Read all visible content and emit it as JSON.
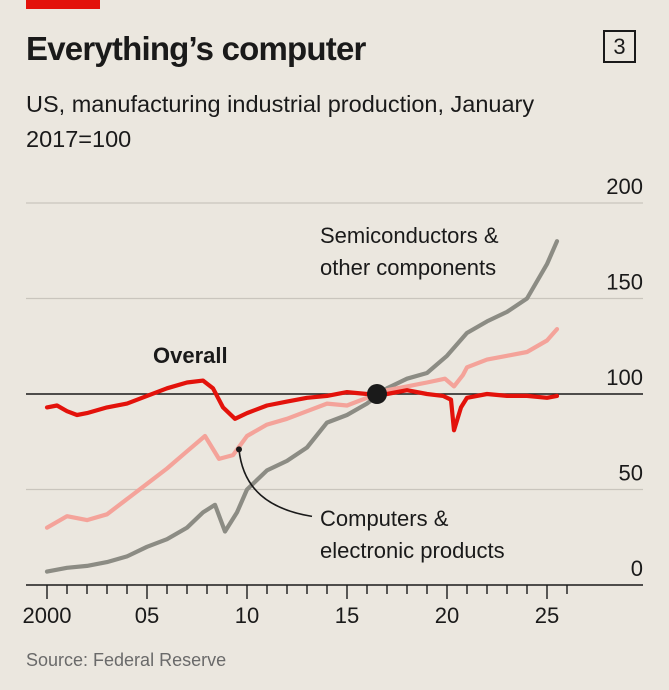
{
  "header": {
    "title": "Everything’s computer",
    "chart_number": "3",
    "subtitle": "US, manufacturing industrial production, January 2017=100",
    "accent_color": "#e3120b"
  },
  "footer": {
    "source": "Source: Federal Reserve"
  },
  "chart_data": {
    "type": "line",
    "title": "Everything’s computer",
    "subtitle": "US, manufacturing industrial production, January 2017=100",
    "xlabel": "",
    "ylabel": "",
    "xlim": [
      1999.5,
      2029
    ],
    "ylim": [
      0,
      200
    ],
    "x_ticks": [
      2000,
      2005,
      2010,
      2015,
      2020,
      2025
    ],
    "x_tick_labels": [
      "2000",
      "05",
      "10",
      "15",
      "20",
      "25"
    ],
    "y_ticks": [
      0,
      50,
      100,
      150,
      200
    ],
    "y_tick_labels": [
      "0",
      "50",
      "100",
      "150",
      "200"
    ],
    "grid": true,
    "reference_point": {
      "x": 2016.5,
      "y": 100
    },
    "series": [
      {
        "name": "Overall",
        "label": "Overall",
        "color": "#e3120b",
        "x": [
          2000,
          2000.5,
          2001,
          2001.5,
          2002,
          2003,
          2004,
          2005,
          2006,
          2007,
          2007.8,
          2008.3,
          2008.8,
          2009.4,
          2010,
          2011,
          2012,
          2013,
          2014,
          2015,
          2016,
          2017,
          2018,
          2019,
          2019.8,
          2020.2,
          2020.35,
          2020.7,
          2021,
          2022,
          2023,
          2024,
          2025,
          2025.5
        ],
        "y": [
          93,
          94,
          91,
          89,
          90,
          93,
          95,
          99,
          103,
          106,
          107,
          103,
          93,
          87,
          90,
          94,
          96,
          98,
          99,
          101,
          100,
          100,
          102,
          100,
          99,
          97,
          81,
          93,
          98,
          100,
          99,
          99,
          98,
          99
        ]
      },
      {
        "name": "Semiconductors & other components",
        "label": "Semiconductors &\nother components",
        "color": "#8c8c84",
        "x": [
          2000,
          2001,
          2002,
          2003,
          2004,
          2005,
          2006,
          2007,
          2007.8,
          2008.4,
          2008.9,
          2009.5,
          2010,
          2011,
          2012,
          2013,
          2014,
          2015,
          2016,
          2017,
          2018,
          2019,
          2020,
          2021,
          2022,
          2023,
          2024,
          2025,
          2025.5
        ],
        "y": [
          7,
          9,
          10,
          12,
          15,
          20,
          24,
          30,
          38,
          42,
          28,
          38,
          50,
          60,
          65,
          72,
          85,
          89,
          95,
          103,
          108,
          111,
          120,
          132,
          138,
          143,
          150,
          168,
          180
        ]
      },
      {
        "name": "Computers & electronic products",
        "label": "Computers &\nelectronic products",
        "color": "#f4a39a",
        "x": [
          2000,
          2001,
          2002,
          2003,
          2004,
          2005,
          2006,
          2007,
          2007.9,
          2008.6,
          2009.3,
          2010,
          2011,
          2012,
          2013,
          2014,
          2015,
          2016,
          2017,
          2018,
          2019,
          2019.9,
          2020.35,
          2020.8,
          2021,
          2022,
          2023,
          2024,
          2025,
          2025.5
        ],
        "y": [
          30,
          36,
          34,
          37,
          45,
          53,
          61,
          70,
          78,
          66,
          68,
          78,
          84,
          87,
          91,
          95,
          94,
          98,
          102,
          104,
          106,
          108,
          104,
          110,
          114,
          118,
          120,
          122,
          128,
          134
        ]
      }
    ],
    "annotations": [
      {
        "text": "Overall",
        "series": "Overall"
      },
      {
        "text": "Semiconductors &\nother components",
        "series": "Semiconductors & other components"
      },
      {
        "text": "Computers &\nelectronic products",
        "series": "Computers & electronic products",
        "points_to": {
          "x": 2009.6,
          "y": 71
        }
      }
    ]
  }
}
